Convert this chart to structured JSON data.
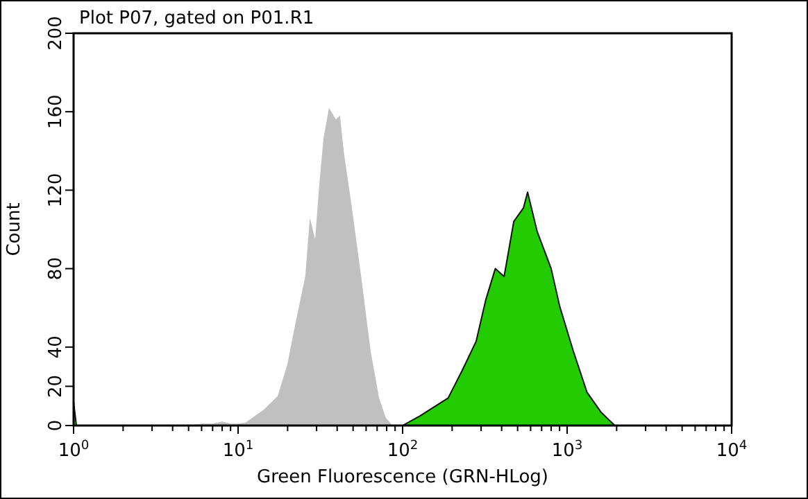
{
  "chart_data": {
    "type": "area",
    "title": "Plot P07, gated on P01.R1",
    "xlabel": "Green Fluorescence (GRN-HLog)",
    "ylabel": "Count",
    "log": "x",
    "grid": false,
    "xlim": [
      1,
      10000
    ],
    "ylim": [
      0,
      200
    ],
    "xticks": [
      {
        "value": 1,
        "label": "10$^{0}$"
      },
      {
        "value": 2,
        "label": null
      },
      {
        "value": 3,
        "label": null
      },
      {
        "value": 4,
        "label": null
      },
      {
        "value": 5,
        "label": null
      },
      {
        "value": 6,
        "label": null
      },
      {
        "value": 7,
        "label": null
      },
      {
        "value": 8,
        "label": null
      },
      {
        "value": 9,
        "label": null
      },
      {
        "value": 10,
        "label": "10$^{1}$"
      },
      {
        "value": 20,
        "label": null
      },
      {
        "value": 30,
        "label": null
      },
      {
        "value": 40,
        "label": null
      },
      {
        "value": 50,
        "label": null
      },
      {
        "value": 60,
        "label": null
      },
      {
        "value": 70,
        "label": null
      },
      {
        "value": 80,
        "label": null
      },
      {
        "value": 90,
        "label": null
      },
      {
        "value": 100,
        "label": "10$^{2}$"
      },
      {
        "value": 200,
        "label": null
      },
      {
        "value": 300,
        "label": null
      },
      {
        "value": 400,
        "label": null
      },
      {
        "value": 500,
        "label": null
      },
      {
        "value": 600,
        "label": null
      },
      {
        "value": 700,
        "label": null
      },
      {
        "value": 800,
        "label": null
      },
      {
        "value": 900,
        "label": null
      },
      {
        "value": 1000,
        "label": "10$^{3}$"
      },
      {
        "value": 2000,
        "label": null
      },
      {
        "value": 3000,
        "label": null
      },
      {
        "value": 4000,
        "label": null
      },
      {
        "value": 5000,
        "label": null
      },
      {
        "value": 6000,
        "label": null
      },
      {
        "value": 7000,
        "label": null
      },
      {
        "value": 8000,
        "label": null
      },
      {
        "value": 9000,
        "label": null
      },
      {
        "value": 10000,
        "label": "10$^{4}$"
      }
    ],
    "yticks": [
      0,
      20,
      40,
      80,
      120,
      160,
      200
    ],
    "series": [
      {
        "color": "#c0c0c0",
        "x": [
          5,
          6,
          7,
          8,
          9,
          10,
          11.1,
          14.3,
          17.4,
          19.9,
          22.3,
          25.6,
          27.3,
          29.4,
          31.1,
          33,
          35.7,
          39.3,
          41.6,
          44,
          48.8,
          56,
          63.9,
          72,
          79,
          87
        ],
        "values": [
          0,
          1,
          1,
          2,
          1,
          1,
          1.5,
          8,
          15,
          31,
          52,
          76,
          106,
          95,
          122,
          146,
          162,
          156,
          158,
          139,
          113,
          76,
          38,
          14,
          4,
          0
        ]
      },
      {
        "color": "#22cc00",
        "x": [
          1,
          1.04,
          100,
          128,
          189,
          230,
          280,
          320,
          366,
          414,
          474,
          543,
          575,
          657,
          800,
          900,
          1090,
          1320,
          1600,
          1950
        ],
        "values": [
          12,
          0,
          0,
          5,
          14,
          28,
          43,
          64,
          80,
          76,
          104,
          111,
          119,
          99,
          80,
          61,
          38,
          17,
          7,
          0
        ]
      }
    ]
  }
}
